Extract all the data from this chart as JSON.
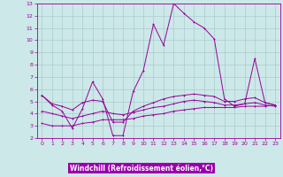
{
  "title": "",
  "xlabel": "Windchill (Refroidissement éolien,°C)",
  "bg_color": "#cce8e8",
  "grid_color": "#aacccc",
  "line_color": "#990099",
  "xlabel_bg": "#9900aa",
  "xlabel_fg": "#ffffff",
  "xlim": [
    -0.5,
    23.5
  ],
  "ylim": [
    2,
    13
  ],
  "xticks": [
    0,
    1,
    2,
    3,
    4,
    5,
    6,
    7,
    8,
    9,
    10,
    11,
    12,
    13,
    14,
    15,
    16,
    17,
    18,
    19,
    20,
    21,
    22,
    23
  ],
  "yticks": [
    2,
    3,
    4,
    5,
    6,
    7,
    8,
    9,
    10,
    11,
    12,
    13
  ],
  "line1_x": [
    0,
    1,
    2,
    3,
    4,
    5,
    6,
    7,
    8,
    9,
    10,
    11,
    12,
    13,
    14,
    15,
    16,
    17,
    18,
    19,
    20,
    21,
    22,
    23
  ],
  "line1_y": [
    5.5,
    4.7,
    4.2,
    2.8,
    4.4,
    6.6,
    5.2,
    2.2,
    2.2,
    5.8,
    7.5,
    11.3,
    9.6,
    13.0,
    12.2,
    11.5,
    11.0,
    10.1,
    5.2,
    4.6,
    4.8,
    8.5,
    4.9,
    4.7
  ],
  "line2_x": [
    0,
    1,
    2,
    3,
    4,
    5,
    6,
    7,
    8,
    9,
    10,
    11,
    12,
    13,
    14,
    15,
    16,
    17,
    18,
    19,
    20,
    21,
    22,
    23
  ],
  "line2_y": [
    5.5,
    4.8,
    4.6,
    4.3,
    4.9,
    5.1,
    5.0,
    3.3,
    3.3,
    4.2,
    4.6,
    4.9,
    5.2,
    5.4,
    5.5,
    5.6,
    5.5,
    5.4,
    5.0,
    5.0,
    5.2,
    5.3,
    4.9,
    4.7
  ],
  "line3_x": [
    0,
    1,
    2,
    3,
    4,
    5,
    6,
    7,
    8,
    9,
    10,
    11,
    12,
    13,
    14,
    15,
    16,
    17,
    18,
    19,
    20,
    21,
    22,
    23
  ],
  "line3_y": [
    3.2,
    3.0,
    3.0,
    3.0,
    3.2,
    3.3,
    3.5,
    3.5,
    3.5,
    3.6,
    3.8,
    3.9,
    4.0,
    4.2,
    4.3,
    4.4,
    4.5,
    4.5,
    4.5,
    4.5,
    4.6,
    4.6,
    4.6,
    4.7
  ],
  "line4_x": [
    0,
    1,
    2,
    3,
    4,
    5,
    6,
    7,
    8,
    9,
    10,
    11,
    12,
    13,
    14,
    15,
    16,
    17,
    18,
    19,
    20,
    21,
    22,
    23
  ],
  "line4_y": [
    4.2,
    4.0,
    3.8,
    3.6,
    3.8,
    4.0,
    4.2,
    4.0,
    3.9,
    4.1,
    4.3,
    4.5,
    4.6,
    4.8,
    5.0,
    5.1,
    5.0,
    4.9,
    4.7,
    4.7,
    4.8,
    4.9,
    4.7,
    4.6
  ]
}
